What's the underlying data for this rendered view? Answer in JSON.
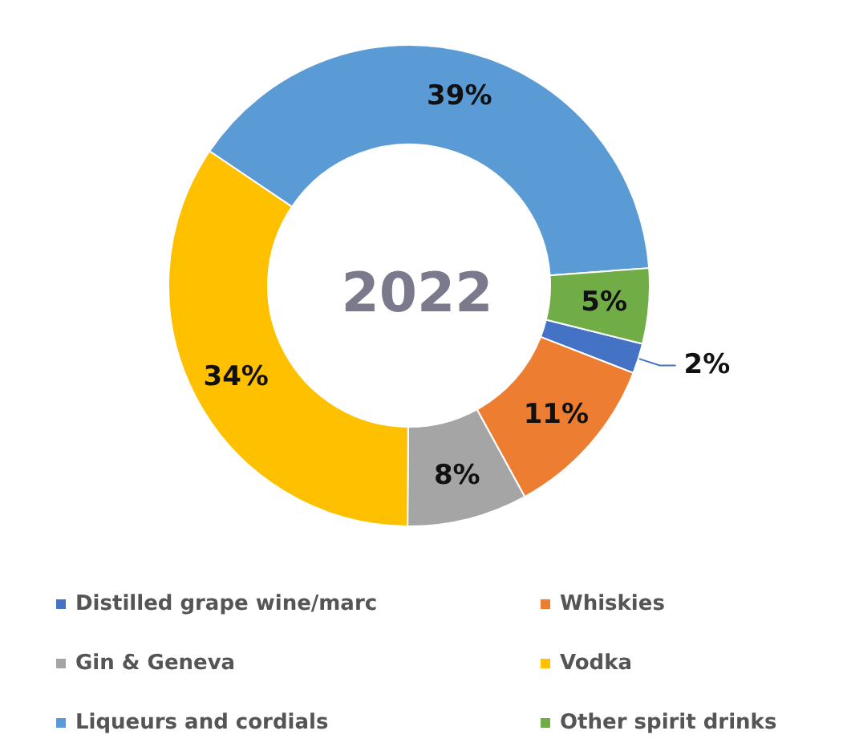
{
  "chart_data": {
    "type": "donut",
    "title": "2022",
    "categories": [
      "Distilled grape wine/marc",
      "Whiskies",
      "Gin & Geneva",
      "Vodka",
      "Liqueurs and cordials",
      "Other spirit drinks"
    ],
    "values": [
      2,
      11,
      8,
      34,
      39,
      5
    ],
    "colors": [
      "#4472c4",
      "#ed7d31",
      "#a5a5a5",
      "#ffc000",
      "#5b9bd5",
      "#70ad47"
    ],
    "value_labels": [
      "2%",
      "11%",
      "8%",
      "34%",
      "39%",
      "5%"
    ],
    "legend": "bottom"
  }
}
